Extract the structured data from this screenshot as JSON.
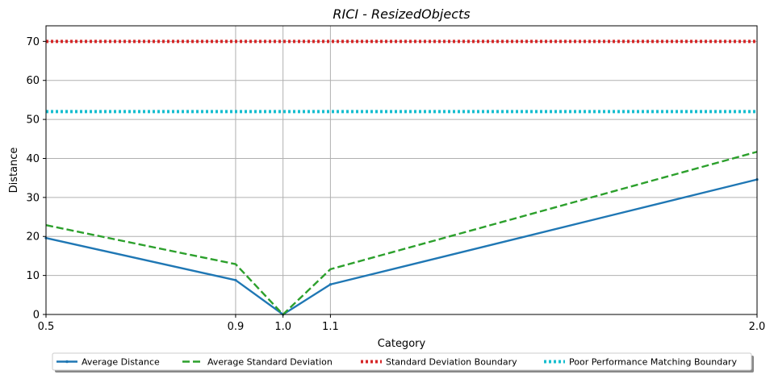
{
  "chart_data": {
    "type": "line",
    "title": "RICI - ResizedObjects",
    "xlabel": "Category",
    "ylabel": "Distance",
    "xlim": [
      0.5,
      2.0
    ],
    "ylim": [
      0,
      74
    ],
    "x": [
      0.5,
      0.9,
      1.0,
      1.1,
      2.0
    ],
    "x_tick_labels": [
      "0.5",
      "0.9",
      "1.0",
      "1.1",
      "2.0"
    ],
    "y_ticks": [
      0,
      10,
      20,
      30,
      40,
      50,
      60,
      70
    ],
    "y_tick_labels": [
      "0",
      "10",
      "20",
      "30",
      "40",
      "50",
      "60",
      "70"
    ],
    "grid": true,
    "legend_position": "bottom-center",
    "series": [
      {
        "name": "Average Distance",
        "values": [
          19.6,
          8.8,
          0.0,
          7.7,
          34.6
        ],
        "color": "#1f77b4",
        "style": "solid"
      },
      {
        "name": "Average Standard Deviation",
        "values": [
          22.9,
          12.9,
          0.0,
          11.6,
          41.7
        ],
        "color": "#2ca02c",
        "style": "dashed"
      },
      {
        "name": "Standard Deviation Boundary",
        "values": [
          70,
          70,
          70,
          70,
          70
        ],
        "color": "#d62728",
        "style": "dotted"
      },
      {
        "name": "Poor Performance Matching Boundary",
        "values": [
          52,
          52,
          52,
          52,
          52
        ],
        "color": "#17becf",
        "style": "dotted"
      }
    ]
  }
}
